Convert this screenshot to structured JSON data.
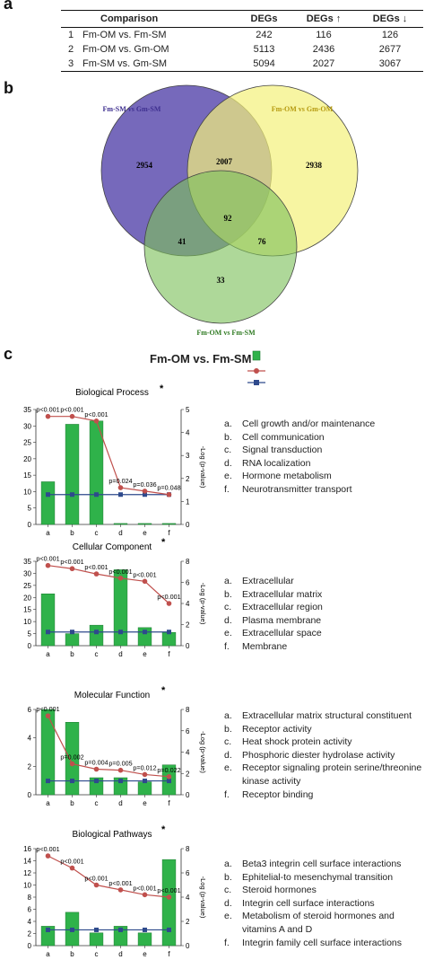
{
  "panel_labels": {
    "a": "a",
    "b": "b",
    "c": "c"
  },
  "table": {
    "headers": [
      "",
      "Comparison",
      "DEGs",
      "DEGs ↑",
      "DEGs ↓"
    ],
    "rows": [
      [
        "1",
        "Fm-OM vs. Fm-SM",
        "242",
        "116",
        "126"
      ],
      [
        "2",
        "Fm-OM vs. Gm-OM",
        "5113",
        "2436",
        "2677"
      ],
      [
        "3",
        "Fm-SM vs. Gm-SM",
        "5094",
        "2027",
        "3067"
      ]
    ]
  },
  "venn": {
    "sets": [
      {
        "label": "Fm-SM vs Gm-SM",
        "color": "#6a5cb5"
      },
      {
        "label": "Fm-OM vs Gm-OM",
        "color": "#f4f17a"
      },
      {
        "label": "Fm-OM vs Fm-SM",
        "color": "#7cc05a"
      }
    ],
    "regions": {
      "a_only": "2954",
      "b_only": "2938",
      "c_only": "33",
      "ab": "2007",
      "ac": "41",
      "bc": "76",
      "abc": "92"
    }
  },
  "panel_c_title": "Fm-OM vs. Fm-SM",
  "colors": {
    "bar": "#2fb24a",
    "bar_edge": "#1c7a30",
    "pvalue_line": "#c0504d",
    "threshold_line": "#2e4a8c"
  },
  "chart_data": [
    {
      "type": "bar",
      "title": "Biological Process",
      "star": "*",
      "categories": [
        "a",
        "b",
        "c",
        "d",
        "e",
        "f"
      ],
      "values": [
        13,
        30.5,
        31.5,
        0.3,
        0.3,
        0.3
      ],
      "ylim": [
        0,
        35
      ],
      "yticks": [
        "0",
        "5",
        "10",
        "15",
        "20",
        "25",
        "30",
        "35"
      ],
      "y2label": "-Log (p-value)",
      "y2lim": [
        0,
        5
      ],
      "y2ticks": [
        "0",
        "1",
        "2",
        "3",
        "4",
        "5"
      ],
      "neglog_p": [
        4.7,
        4.7,
        4.5,
        1.6,
        1.45,
        1.3
      ],
      "threshold": 1.3,
      "pvalue_labels": [
        "p<0.001",
        "p<0.001",
        "p<0.001",
        "p=0.024",
        "p=0.036",
        "p=0.048"
      ],
      "descriptions": [
        "Cell growth and/or maintenance",
        "Cell communication",
        "Signal transduction",
        "RNA localization",
        "Hormone metabolism",
        "Neurotransmitter transport"
      ]
    },
    {
      "type": "bar",
      "title": "Cellular Component",
      "star": "*",
      "categories": [
        "a",
        "b",
        "c",
        "d",
        "e",
        "f"
      ],
      "values": [
        21.5,
        5,
        8.5,
        31.5,
        7.5,
        5.5
      ],
      "ylim": [
        0,
        35
      ],
      "yticks": [
        "0",
        "5",
        "10",
        "15",
        "20",
        "25",
        "30",
        "35"
      ],
      "y2label": "-Log (p-value)",
      "y2lim": [
        0,
        8
      ],
      "y2ticks": [
        "0",
        "2",
        "4",
        "6",
        "8"
      ],
      "neglog_p": [
        7.6,
        7.3,
        6.8,
        6.4,
        6.1,
        4.0
      ],
      "threshold": 1.3,
      "pvalue_labels": [
        "p<0.001",
        "p<0.001",
        "p<0.001",
        "p<0.001",
        "p<0.001",
        "p<0.001"
      ],
      "descriptions": [
        "Extracellular",
        "Extracellular matrix",
        "Extracellular region",
        "Plasma membrane",
        "Extracellular space",
        "Membrane"
      ]
    },
    {
      "type": "bar",
      "title": "Molecular Function",
      "star": "*",
      "categories": [
        "a",
        "b",
        "c",
        "d",
        "e",
        "f"
      ],
      "values": [
        6,
        5.1,
        1.2,
        1.2,
        0.9,
        2.1
      ],
      "ylim": [
        0,
        6
      ],
      "yticks": [
        "0",
        "2",
        "4",
        "6"
      ],
      "y2label": "-Log (p-value)",
      "y2lim": [
        0,
        8
      ],
      "y2ticks": [
        "0",
        "2",
        "4",
        "6",
        "8"
      ],
      "neglog_p": [
        7.4,
        2.9,
        2.4,
        2.3,
        1.9,
        1.7
      ],
      "threshold": 1.3,
      "pvalue_labels": [
        "p<0.001",
        "p=0.002",
        "p=0.004",
        "p=0.005",
        "p=0.012",
        "p=0.022"
      ],
      "descriptions": [
        "Extracellular matrix structural constituent",
        "Receptor activity",
        "Heat shock protein activity",
        "Phosphoric diester hydrolase activity",
        "Receptor signaling protein serine/threonine kinase activity",
        "Receptor binding"
      ]
    },
    {
      "type": "bar",
      "title": "Biological Pathways",
      "star": "*",
      "categories": [
        "a",
        "b",
        "c",
        "d",
        "e",
        "f"
      ],
      "values": [
        3.2,
        5.5,
        2.1,
        3.2,
        2.1,
        14.2
      ],
      "ylim": [
        0,
        16
      ],
      "yticks": [
        "0",
        "2",
        "4",
        "6",
        "8",
        "10",
        "12",
        "14",
        "16"
      ],
      "y2label": "-Log (p-value)",
      "y2lim": [
        0,
        8
      ],
      "y2ticks": [
        "0",
        "2",
        "4",
        "6",
        "8"
      ],
      "neglog_p": [
        7.4,
        6.4,
        5.0,
        4.6,
        4.2,
        4.0
      ],
      "threshold": 1.3,
      "pvalue_labels": [
        "p<0.001",
        "p<0.001",
        "p<0.001",
        "p<0.001",
        "p<0.001",
        "p<0.001"
      ],
      "descriptions": [
        "Beta3 integrin cell surface interactions",
        "Ephitelial-to mesenchymal transition",
        "Steroid hormones",
        "Integrin cell surface interactions",
        "Metabolism of steroid hormones and vitamins A and D",
        "Integrin family cell surface interactions"
      ]
    }
  ]
}
